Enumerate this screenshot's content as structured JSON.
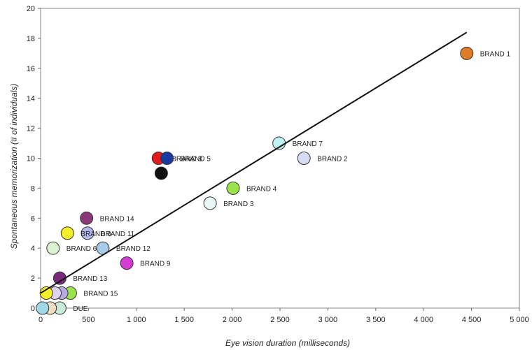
{
  "chart_data": {
    "type": "scatter",
    "title": "",
    "xlabel": "Eye vision duration (milliseconds)",
    "ylabel": "Spontaneous memorization (# of individuals)",
    "xlim": [
      0,
      5000
    ],
    "ylim": [
      0,
      20
    ],
    "xticks": [
      "0",
      "500",
      "1 000",
      "1 500",
      "2 000",
      "2 500",
      "3 000",
      "3 500",
      "4 000",
      "4 500",
      "5 000"
    ],
    "yticks": [
      "0",
      "2",
      "4",
      "6",
      "8",
      "10",
      "12",
      "14",
      "16",
      "18",
      "20"
    ],
    "grid": false,
    "trendline": {
      "x": [
        0,
        4450
      ],
      "y": [
        1.0,
        18.4
      ]
    },
    "points": [
      {
        "label": "BRAND 1",
        "x": 4450,
        "y": 17,
        "color": "#e07b28"
      },
      {
        "label": "BRAND 7",
        "x": 2490,
        "y": 11,
        "color": "#bff3f3"
      },
      {
        "label": "BRAND 2",
        "x": 2750,
        "y": 10,
        "color": "#d6dcf6"
      },
      {
        "label": "BRAND 8",
        "x": 1230,
        "y": 10,
        "color": "#e01c1c"
      },
      {
        "label": "BRAND 5",
        "x": 1320,
        "y": 10,
        "color": "#1a3aa0"
      },
      {
        "label": "",
        "x": 1260,
        "y": 9,
        "color": "#111111"
      },
      {
        "label": "BRAND 4",
        "x": 2010,
        "y": 8,
        "color": "#9be34a"
      },
      {
        "label": "BRAND 3",
        "x": 1770,
        "y": 7,
        "color": "#e8f8f8"
      },
      {
        "label": "BRAND 14",
        "x": 480,
        "y": 6,
        "color": "#8a3a78"
      },
      {
        "label": "BRAND 11",
        "x": 490,
        "y": 5,
        "color": "#b0b8ec"
      },
      {
        "label": "BRAND 0",
        "x": 280,
        "y": 5,
        "color": "#f5ef2a"
      },
      {
        "label": "BRAND 6",
        "x": 130,
        "y": 4,
        "color": "#dbf3cf"
      },
      {
        "label": "BRAND 12",
        "x": 650,
        "y": 4,
        "color": "#a8cce8"
      },
      {
        "label": "BRAND 9",
        "x": 900,
        "y": 3,
        "color": "#d43cd4"
      },
      {
        "label": "BRAND 13",
        "x": 200,
        "y": 2,
        "color": "#7a2a7a"
      },
      {
        "label": "BRAND 15",
        "x": 310,
        "y": 1,
        "color": "#9be34a"
      },
      {
        "label": "",
        "x": 220,
        "y": 1,
        "color": "#b8a8e0"
      },
      {
        "label": "",
        "x": 150,
        "y": 1,
        "color": "#dcd4f0"
      },
      {
        "label": "",
        "x": 60,
        "y": 1,
        "color": "#f5ef2a"
      },
      {
        "label": "DUE",
        "x": 200,
        "y": 0,
        "color": "#c7ecd8"
      },
      {
        "label": "",
        "x": 100,
        "y": 0,
        "color": "#f2ddc4"
      },
      {
        "label": "",
        "x": 20,
        "y": 0,
        "color": "#9fd8e6"
      }
    ]
  }
}
